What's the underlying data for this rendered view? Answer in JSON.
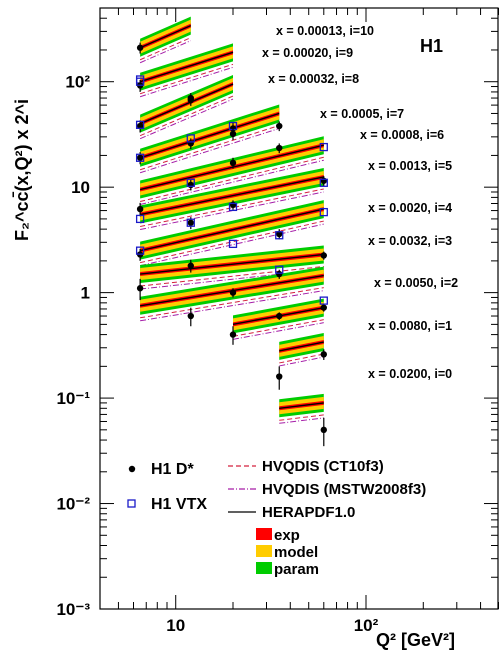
{
  "chart_data": {
    "type": "scatter",
    "title": "H1",
    "xlabel": "Q² [GeV²]",
    "ylabel": "F₂^cc̄(x,Q²) x 2^i",
    "xscale": "log",
    "yscale": "log",
    "xlim": [
      4,
      500
    ],
    "ylim": [
      0.001,
      500
    ],
    "x_ticks": [
      {
        "value": 10,
        "label": "10"
      },
      {
        "value": 100,
        "label": "10²"
      }
    ],
    "y_ticks": [
      {
        "value": 0.001,
        "label": "10⁻³"
      },
      {
        "value": 0.01,
        "label": "10⁻²"
      },
      {
        "value": 0.1,
        "label": "10⁻¹"
      },
      {
        "value": 1,
        "label": "1"
      },
      {
        "value": 10,
        "label": "10"
      },
      {
        "value": 100,
        "label": "10²"
      }
    ],
    "bins": [
      {
        "label": "x = 0.00013, i=10",
        "q2": [
          6.5,
          12
        ],
        "theory": [
          210,
          340
        ],
        "dstar": [
          {
            "x": 6.5,
            "y": 210,
            "err": 25
          }
        ],
        "vtx": [
          {
            "x": 6.5,
            "y": 105
          }
        ]
      },
      {
        "label": "x = 0.00020, i=9",
        "q2": [
          6.5,
          20
        ],
        "theory": [
          100,
          190
        ],
        "dstar": [
          {
            "x": 6.5,
            "y": 92,
            "err": 12
          },
          {
            "x": 12,
            "y": 70,
            "err": 8
          }
        ],
        "vtx": [
          {
            "x": 6.5,
            "y": 100
          }
        ]
      },
      {
        "label": "x = 0.00032, i=8",
        "q2": [
          6.5,
          20
        ],
        "theory": [
          40,
          95
        ],
        "dstar": [
          {
            "x": 6.5,
            "y": 38,
            "err": 5
          },
          {
            "x": 12,
            "y": 67,
            "err": 8
          },
          {
            "x": 20,
            "y": 36,
            "err": 5
          }
        ],
        "vtx": [
          {
            "x": 6.5,
            "y": 39
          },
          {
            "x": 20,
            "y": 38
          }
        ]
      },
      {
        "label": "x = 0.0005, i=7",
        "q2": [
          6.5,
          35
        ],
        "theory": [
          19,
          50
        ],
        "dstar": [
          {
            "x": 6.5,
            "y": 19,
            "err": 2.5
          },
          {
            "x": 12,
            "y": 26,
            "err": 3
          },
          {
            "x": 20,
            "y": 32,
            "err": 4
          },
          {
            "x": 35,
            "y": 38,
            "err": 4
          }
        ],
        "vtx": [
          {
            "x": 6.5,
            "y": 19
          },
          {
            "x": 12,
            "y": 29
          }
        ]
      },
      {
        "label": "x = 0.0008, i=6",
        "q2": [
          6.5,
          60
        ],
        "theory": [
          9.5,
          25
        ],
        "dstar": [
          {
            "x": 12,
            "y": 10.5,
            "err": 1.2
          },
          {
            "x": 20,
            "y": 17,
            "err": 2
          },
          {
            "x": 35,
            "y": 23.5,
            "err": 2.5
          }
        ],
        "vtx": [
          {
            "x": 12,
            "y": 11
          },
          {
            "x": 60,
            "y": 24
          }
        ]
      },
      {
        "label": "x = 0.0013, i=5",
        "q2": [
          6.5,
          60
        ],
        "theory": [
          5.5,
          12.5
        ],
        "dstar": [
          {
            "x": 6.5,
            "y": 6.2,
            "err": 0.9
          },
          {
            "x": 20,
            "y": 6.8,
            "err": 0.7
          },
          {
            "x": 60,
            "y": 11.5,
            "err": 1.2
          }
        ],
        "vtx": [
          {
            "x": 6.5,
            "y": 5.0
          },
          {
            "x": 20,
            "y": 6.5
          },
          {
            "x": 60,
            "y": 11.0
          }
        ]
      },
      {
        "label": "x = 0.0020, i=4",
        "q2": [
          6.5,
          60
        ],
        "theory": [
          2.5,
          6.2
        ],
        "dstar": [
          {
            "x": 12,
            "y": 4.6,
            "err": 0.6
          },
          {
            "x": 35,
            "y": 3.6,
            "err": 0.4
          }
        ],
        "vtx": [
          {
            "x": 12,
            "y": 4.6
          },
          {
            "x": 20,
            "y": 2.9
          },
          {
            "x": 35,
            "y": 3.5
          },
          {
            "x": 60,
            "y": 5.8
          }
        ]
      },
      {
        "label": "x = 0.0032, i=3",
        "q2": [
          6.5,
          60
        ],
        "theory": [
          1.5,
          2.3
        ],
        "dstar": [
          {
            "x": 6.5,
            "y": 2.3,
            "err": 0.3
          },
          {
            "x": 12,
            "y": 1.8,
            "err": 0.25
          },
          {
            "x": 35,
            "y": 1.5,
            "err": 0.15
          },
          {
            "x": 60,
            "y": 2.25,
            "err": 0.2
          }
        ],
        "vtx": [
          {
            "x": 6.5,
            "y": 2.5
          },
          {
            "x": 35,
            "y": 1.65
          }
        ]
      },
      {
        "label": "x = 0.0050, i=2",
        "q2": [
          6.5,
          60
        ],
        "theory": [
          0.75,
          1.45
        ],
        "dstar": [
          {
            "x": 6.5,
            "y": 1.1,
            "err": 0.25
          },
          {
            "x": 12,
            "y": 0.6,
            "err": 0.12
          },
          {
            "x": 20,
            "y": 1.0,
            "err": 0.1
          },
          {
            "x": 60,
            "y": 0.72,
            "err": 0.06
          }
        ],
        "vtx": [
          {
            "x": 60,
            "y": 0.84
          }
        ]
      },
      {
        "label": "x = 0.0080, i=1",
        "q2": [
          20,
          60
        ],
        "theory": [
          0.5,
          0.72
        ],
        "dstar": [
          {
            "x": 20,
            "y": 0.4,
            "err": 0.08
          },
          {
            "x": 35,
            "y": 0.6,
            "err": 0.05
          },
          {
            "x": 60,
            "y": 0.26,
            "err": 0.03
          }
        ],
        "vtx": []
      },
      {
        "label": "x = 0.0200, i=0",
        "q2": [
          35,
          60
        ],
        "theory": [
          0.28,
          0.34
        ],
        "dstar": [
          {
            "x": 35,
            "y": 0.16,
            "err": 0.04
          }
        ],
        "vtx": []
      },
      {
        "label": "",
        "q2": [
          35,
          60
        ],
        "theory": [
          0.08,
          0.09
        ],
        "dstar": [
          {
            "x": 60,
            "y": 0.05,
            "err": 0.015
          }
        ],
        "vtx": []
      }
    ],
    "legend": [
      {
        "name": "H1 D*",
        "marker": "dot"
      },
      {
        "name": "H1 VTX",
        "marker": "open-square"
      },
      {
        "name": "HVQDIS (CT10f3)",
        "marker": "dashed-line",
        "color": "#d4213d"
      },
      {
        "name": "HVQDIS (MSTW2008f3)",
        "marker": "dashdot-line",
        "color": "#a61ea8"
      },
      {
        "name": "HERAPDF1.0",
        "marker": "solid-line",
        "color": "#000000"
      },
      {
        "name": "exp",
        "marker": "box",
        "color": "#ff0000"
      },
      {
        "name": "model",
        "marker": "box",
        "color": "#ffcc00"
      },
      {
        "name": "param",
        "marker": "box",
        "color": "#00cc00"
      }
    ],
    "colors": {
      "exp": "#ff0000",
      "model": "#ffcc00",
      "param": "#00cc00",
      "ct10": "#d4213d",
      "mstw": "#a61ea8",
      "hera": "#000000",
      "vtx": "#1a1ac8"
    }
  }
}
